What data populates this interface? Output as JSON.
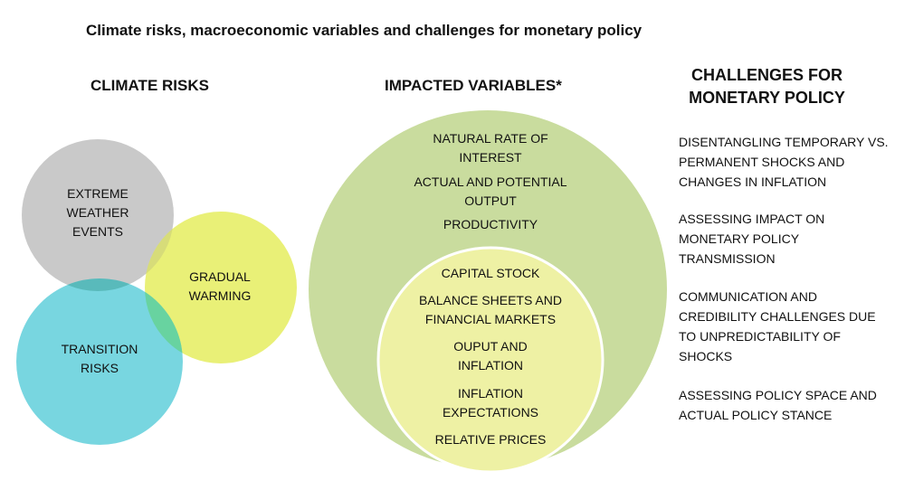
{
  "title": "Climate risks, macroeconomic variables and challenges for monetary policy",
  "headings": {
    "climate_risks": "CLIMATE RISKS",
    "impacted_variables": "IMPACTED VARIABLES*",
    "challenges": "CHALLENGES FOR MONETARY POLICY"
  },
  "colors": {
    "extreme_weather": "#c6c6c6",
    "gradual_warming": "#e8ef70",
    "transition_risks": "#6dd3dd",
    "outer_circle": "#c9dc9e",
    "inner_circle": "#eef1a4",
    "inner_border": "#ffffff"
  },
  "climate_risks": {
    "extreme_weather": "EXTREME WEATHER EVENTS",
    "gradual_warming": "GRADUAL WARMING",
    "transition_risks": "TRANSITION RISKS"
  },
  "impacted_variables": {
    "outer": [
      "NATURAL RATE OF INTEREST",
      "ACTUAL AND POTENTIAL OUTPUT",
      "PRODUCTIVITY"
    ],
    "inner": [
      "CAPITAL STOCK",
      "BALANCE SHEETS AND FINANCIAL MARKETS",
      "OUPUT AND INFLATION",
      "INFLATION EXPECTATIONS",
      "RELATIVE PRICES"
    ]
  },
  "challenges": [
    "DISENTANGLING TEMPORARY VS. PERMANENT SHOCKS AND CHANGES IN INFLATION",
    "ASSESSING IMPACT ON MONETARY POLICY TRANSMISSION",
    "COMMUNICATION AND CREDIBILITY CHALLENGES DUE TO UNPREDICTABILITY OF SHOCKS",
    "ASSESSING POLICY SPACE AND ACTUAL POLICY STANCE"
  ]
}
